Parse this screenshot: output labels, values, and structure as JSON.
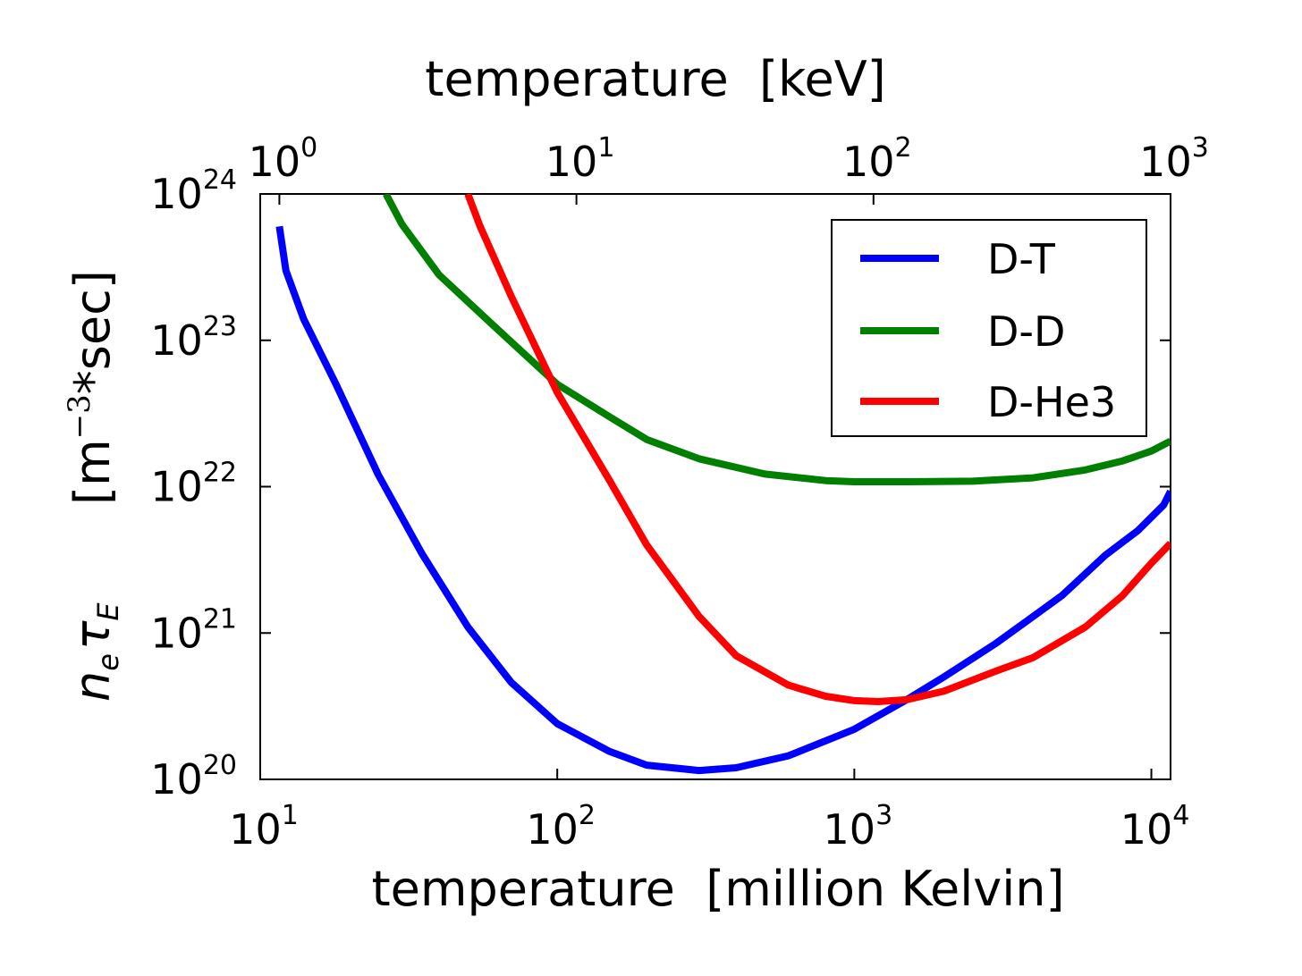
{
  "chart_data": {
    "type": "line",
    "title": "",
    "xlabel": "temperature  [million Kelvin]",
    "x2label": "temperature  [keV]",
    "ylabel_math": "n_e τ_E",
    "ylabel": "[m⁻³*sec]",
    "ylabel_unit": "[m",
    "ylabel_exp": "−3",
    "ylabel_rest": "*sec]",
    "x_scale": "log",
    "y_scale": "log",
    "xlim": [
      10,
      11604
    ],
    "x2lim": [
      0.862,
      1000
    ],
    "ylim": [
      1e+20,
      1e+24
    ],
    "grid": false,
    "legend_position": "top-right",
    "x_ticks": [
      {
        "base": "10",
        "exp": "1"
      },
      {
        "base": "10",
        "exp": "2"
      },
      {
        "base": "10",
        "exp": "3"
      },
      {
        "base": "10",
        "exp": "4"
      }
    ],
    "x2_ticks": [
      {
        "base": "10",
        "exp": "0"
      },
      {
        "base": "10",
        "exp": "1"
      },
      {
        "base": "10",
        "exp": "2"
      },
      {
        "base": "10",
        "exp": "3"
      }
    ],
    "y_ticks": [
      {
        "base": "10",
        "exp": "20"
      },
      {
        "base": "10",
        "exp": "21"
      },
      {
        "base": "10",
        "exp": "22"
      },
      {
        "base": "10",
        "exp": "23"
      },
      {
        "base": "10",
        "exp": "24"
      }
    ],
    "series": [
      {
        "name": "D-T",
        "color": "#0000ff",
        "points": [
          [
            11.6,
            6e+23
          ],
          [
            12.2,
            3e+23
          ],
          [
            14,
            1.4e+23
          ],
          [
            18,
            5e+22
          ],
          [
            25,
            1.2e+22
          ],
          [
            35,
            3.5e+21
          ],
          [
            50,
            1.1e+21
          ],
          [
            70,
            4.6e+20
          ],
          [
            100,
            2.4e+20
          ],
          [
            150,
            1.55e+20
          ],
          [
            200,
            1.25e+20
          ],
          [
            300,
            1.15e+20
          ],
          [
            400,
            1.2e+20
          ],
          [
            600,
            1.45e+20
          ],
          [
            1000,
            2.2e+20
          ],
          [
            1500,
            3.5e+20
          ],
          [
            2000,
            5e+20
          ],
          [
            3000,
            8.5e+20
          ],
          [
            5000,
            1.8e+21
          ],
          [
            7000,
            3.4e+21
          ],
          [
            9000,
            5e+21
          ],
          [
            11000,
            7.5e+21
          ],
          [
            11604,
            9.3e+21
          ]
        ]
      },
      {
        "name": "D-D",
        "color": "#007f00",
        "points": [
          [
            26.5,
            1e+24
          ],
          [
            30,
            6.2e+23
          ],
          [
            40,
            2.8e+23
          ],
          [
            60,
            1.3e+23
          ],
          [
            100,
            5e+22
          ],
          [
            150,
            3e+22
          ],
          [
            200,
            2.1e+22
          ],
          [
            300,
            1.55e+22
          ],
          [
            500,
            1.22e+22
          ],
          [
            800,
            1.1e+22
          ],
          [
            1000,
            1.08e+22
          ],
          [
            1500,
            1.08e+22
          ],
          [
            2500,
            1.09e+22
          ],
          [
            4000,
            1.15e+22
          ],
          [
            6000,
            1.3e+22
          ],
          [
            8000,
            1.5e+22
          ],
          [
            10000,
            1.75e+22
          ],
          [
            11604,
            2.05e+22
          ]
        ]
      },
      {
        "name": "D-He3",
        "color": "#ff0000",
        "points": [
          [
            50,
            1e+24
          ],
          [
            55,
            6e+23
          ],
          [
            70,
            2e+23
          ],
          [
            100,
            4.4e+22
          ],
          [
            150,
            1.1e+22
          ],
          [
            200,
            4e+21
          ],
          [
            300,
            1.3e+21
          ],
          [
            400,
            7e+20
          ],
          [
            600,
            4.4e+20
          ],
          [
            800,
            3.7e+20
          ],
          [
            1000,
            3.45e+20
          ],
          [
            1200,
            3.4e+20
          ],
          [
            1500,
            3.5e+20
          ],
          [
            2000,
            4e+20
          ],
          [
            3000,
            5.5e+20
          ],
          [
            4000,
            6.8e+20
          ],
          [
            6000,
            1.1e+21
          ],
          [
            8000,
            1.8e+21
          ],
          [
            10000,
            3e+21
          ],
          [
            11604,
            4.1e+21
          ]
        ]
      }
    ]
  }
}
